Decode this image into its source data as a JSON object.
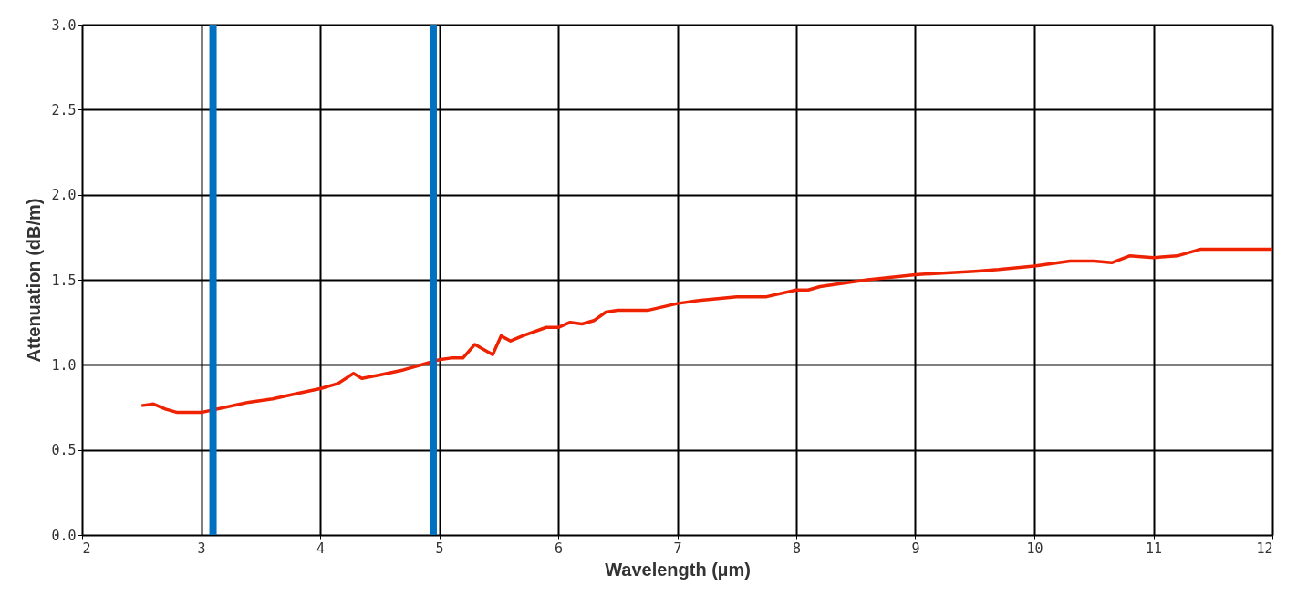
{
  "chart_data": {
    "type": "line",
    "xlabel": "Wavelength (µm)",
    "ylabel": "Attenuation (dB/m)",
    "x": [
      2.5,
      2.6,
      2.7,
      2.8,
      3.0,
      3.2,
      3.4,
      3.6,
      3.8,
      4.0,
      4.15,
      4.28,
      4.35,
      4.5,
      4.7,
      4.9,
      5.0,
      5.1,
      5.2,
      5.3,
      5.4,
      5.45,
      5.52,
      5.6,
      5.7,
      5.9,
      6.0,
      6.1,
      6.2,
      6.3,
      6.4,
      6.5,
      6.75,
      7.0,
      7.2,
      7.5,
      7.75,
      8.0,
      8.1,
      8.2,
      8.6,
      9.0,
      9.5,
      9.7,
      10.0,
      10.3,
      10.5,
      10.65,
      10.8,
      11.0,
      11.2,
      11.4,
      11.7,
      12.0
    ],
    "series": [
      {
        "color": "#ee2200",
        "values": [
          0.76,
          0.77,
          0.74,
          0.72,
          0.72,
          0.75,
          0.78,
          0.8,
          0.83,
          0.86,
          0.89,
          0.95,
          0.92,
          0.94,
          0.97,
          1.01,
          1.03,
          1.04,
          1.04,
          1.12,
          1.08,
          1.06,
          1.17,
          1.14,
          1.17,
          1.22,
          1.22,
          1.25,
          1.24,
          1.26,
          1.31,
          1.32,
          1.32,
          1.36,
          1.38,
          1.4,
          1.4,
          1.44,
          1.44,
          1.46,
          1.5,
          1.53,
          1.55,
          1.56,
          1.58,
          1.61,
          1.61,
          1.6,
          1.64,
          1.63,
          1.64,
          1.68,
          1.68,
          1.68
        ]
      }
    ],
    "xlim": [
      2,
      12
    ],
    "xticks": [
      2,
      3,
      4,
      5,
      6,
      7,
      8,
      9,
      10,
      11,
      12
    ],
    "ylim": [
      0,
      3
    ],
    "yticks": [
      {
        "value": 0,
        "label": "0.0"
      },
      {
        "value": 0.5,
        "label": "0.5"
      },
      {
        "value": 1,
        "label": "1.0"
      },
      {
        "value": 1.5,
        "label": "1.5"
      },
      {
        "value": 2,
        "label": "2.0"
      },
      {
        "value": 2.5,
        "label": "2.5"
      },
      {
        "value": 3,
        "label": "3.0"
      }
    ],
    "grid": true,
    "marker": "none",
    "line_style": "solid",
    "ref_lines": [
      {
        "axis": "x",
        "value": 3.1,
        "color": "#0070c0"
      },
      {
        "axis": "x",
        "value": 4.95,
        "color": "#0070c0"
      }
    ]
  }
}
